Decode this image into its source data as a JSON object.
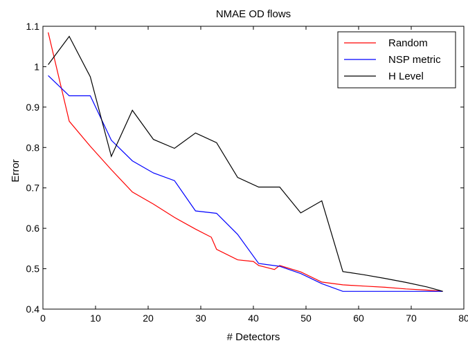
{
  "chart_data": {
    "type": "line",
    "title": "NMAE OD flows",
    "xlabel": "# Detectors",
    "ylabel": "Error",
    "xlim": [
      0,
      80
    ],
    "ylim": [
      0.4,
      1.1
    ],
    "xticks": [
      "0",
      "10",
      "20",
      "30",
      "40",
      "50",
      "60",
      "70",
      "80"
    ],
    "yticks": [
      "0.4",
      "0.5",
      "0.6",
      "0.7",
      "0.8",
      "0.9",
      "1",
      "1.1"
    ],
    "grid": false,
    "legend_position": "top-right",
    "series": [
      {
        "name": "Random",
        "color": "#ff0000",
        "x": [
          1,
          5,
          9,
          13,
          17,
          21,
          25,
          29,
          32,
          33,
          37,
          40,
          41,
          44,
          45,
          49,
          53,
          57,
          61,
          65,
          69,
          73,
          76
        ],
        "y": [
          1.085,
          0.865,
          0.803,
          0.745,
          0.69,
          0.66,
          0.627,
          0.598,
          0.578,
          0.548,
          0.522,
          0.518,
          0.508,
          0.498,
          0.508,
          0.492,
          0.467,
          0.46,
          0.457,
          0.454,
          0.45,
          0.447,
          0.444
        ]
      },
      {
        "name": "NSP metric",
        "color": "#0000ff",
        "x": [
          1,
          5,
          9,
          13,
          17,
          21,
          25,
          29,
          33,
          37,
          41,
          45,
          49,
          53,
          57,
          61,
          65,
          69,
          73,
          76
        ],
        "y": [
          0.978,
          0.928,
          0.928,
          0.818,
          0.767,
          0.737,
          0.718,
          0.643,
          0.637,
          0.585,
          0.513,
          0.506,
          0.488,
          0.463,
          0.444,
          0.444,
          0.444,
          0.444,
          0.444,
          0.444
        ]
      },
      {
        "name": "H Level",
        "color": "#000000",
        "x": [
          1,
          5,
          9,
          13,
          17,
          21,
          25,
          29,
          33,
          37,
          41,
          45,
          49,
          53,
          57,
          61,
          65,
          69,
          73,
          76
        ],
        "y": [
          1.005,
          1.075,
          0.975,
          0.778,
          0.892,
          0.82,
          0.798,
          0.836,
          0.812,
          0.726,
          0.702,
          0.702,
          0.638,
          0.668,
          0.493,
          0.485,
          0.476,
          0.466,
          0.455,
          0.444
        ]
      }
    ]
  }
}
